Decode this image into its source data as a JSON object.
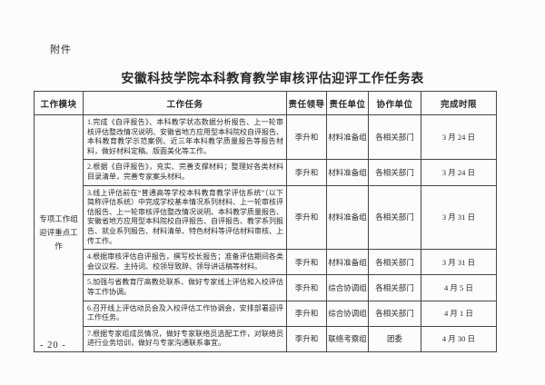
{
  "page": {
    "attachment_label": "附件",
    "title": "安徽科技学院本科教育教学审核评估迎评工作任务表",
    "page_number": "- 20 -"
  },
  "table": {
    "headers": [
      "工作模块",
      "工作任务",
      "责任领导",
      "责任单位",
      "协作单位",
      "完成时限"
    ],
    "module_lines": [
      "专项工作组",
      "迎评重点工作"
    ],
    "rows": [
      {
        "task": "1.完成《自评报告》、本科教学状态数据分析报告、上一轮审核评估整改情况说明、安徽省地方应用型本科院校自评报告、本科教育教学示范案例、近三年本科教学质量报告等报告材料，做好材料定稿、版面美化等工作。",
        "leader": "李升和",
        "unit": "材料准备组",
        "collaborator": "各相关部门",
        "deadline": "3 月 24 日",
        "lines": 4
      },
      {
        "task": "2.根据《自评报告》，充实、完善支撑材料；整理好各类材料目录清单，完善专家案头材料。",
        "leader": "李升和",
        "unit": "材料准备组",
        "collaborator": "各相关部门",
        "deadline": "3 月 24 日",
        "lines": 2
      },
      {
        "task": "3.线上评估前在“普通高等学校本科教育教学评估系统”（以下简称评估系统）中完成学校基本情况系列材料、上一轮审核评估报告、上一轮审核评估整改情况说明、本科教学质量报告、安徽省地方应用型本科院校自评报告、自评报告、教学系列报告、就业系列报告、材料清单、特色材料等评估材料审核、上传工作。",
        "leader": "李升和",
        "unit": "材料准备组",
        "collaborator": "各相关部门",
        "deadline": "3 月 31 日",
        "lines": 6
      },
      {
        "task": "4.根据审核评估自评报告，撰写校长报告；准备评估期间各类会议议程、主持词、校领导致辞、领导讲话稿等材料。",
        "leader": "李升和",
        "unit": "材料准备组",
        "collaborator": "各相关部门",
        "deadline": "3 月 31 日",
        "lines": 2
      },
      {
        "task": "5.加强与省教育厅高教处联系、做好专家线上评估和入校评估等工作协调。",
        "leader": "李升和",
        "unit": "综合协调组",
        "collaborator": "各相关部门",
        "deadline": "4 月 5 日",
        "lines": 2
      },
      {
        "task": "6.召开线上评估动员会及入校评估工作协调会，安排部署迎评工作任务。",
        "leader": "李升和",
        "unit": "综合协调组",
        "collaborator": "各相关部门",
        "deadline": "4 月 1 日",
        "lines": 2
      },
      {
        "task": "7.根据专家组成员情况，做好专家联络员选配工作，对联络员进行业务培训，做好与专家沟通联系事宜。",
        "leader": "李升和",
        "unit": "联络考察组",
        "collaborator": "团委",
        "deadline": "4 月 30 日",
        "lines": 2
      }
    ]
  },
  "colors": {
    "page_background": "#fcfcfc",
    "text": "#2b2b2b",
    "table_border": "#474747"
  }
}
